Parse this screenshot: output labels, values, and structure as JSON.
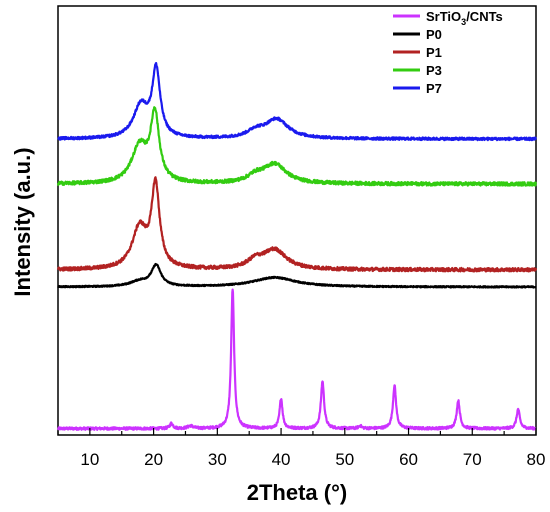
{
  "chart_data": {
    "type": "line",
    "xlabel": "2Theta (°)",
    "ylabel": "Intensity (a.u.)",
    "xlim": [
      5,
      80
    ],
    "xticks": [
      10,
      20,
      30,
      40,
      50,
      60,
      70,
      80
    ],
    "ylim": [
      0,
      10
    ],
    "y_tick_labels_shown": false,
    "grid": false,
    "legend_position": "top-right",
    "colors": {
      "SrTiO3/CNTs": "#cc33ff",
      "P0": "#000000",
      "P1": "#b22222",
      "P3": "#33cc11",
      "P7": "#1a1aee"
    },
    "legend": [
      {
        "key": "SrTiO3/CNTs",
        "label_main": "SrTiO",
        "label_sub": "3",
        "label_tail": "/CNTs"
      },
      {
        "key": "P0",
        "label_main": "P0",
        "label_sub": "",
        "label_tail": ""
      },
      {
        "key": "P1",
        "label_main": "P1",
        "label_sub": "",
        "label_tail": ""
      },
      {
        "key": "P3",
        "label_main": "P3",
        "label_sub": "",
        "label_tail": ""
      },
      {
        "key": "P7",
        "label_main": "P7",
        "label_sub": "",
        "label_tail": ""
      }
    ],
    "series": [
      {
        "key": "SrTiO3/CNTs",
        "baseline": 0.15,
        "noise": 0.03,
        "peaks": [
          {
            "x": 22.8,
            "h": 0.12,
            "w": 0.3
          },
          {
            "x": 25.8,
            "h": 0.06,
            "w": 0.5
          },
          {
            "x": 32.4,
            "h": 3.25,
            "w": 0.28
          },
          {
            "x": 40.0,
            "h": 0.7,
            "w": 0.28
          },
          {
            "x": 46.5,
            "h": 1.1,
            "w": 0.3
          },
          {
            "x": 52.4,
            "h": 0.06,
            "w": 0.3
          },
          {
            "x": 57.8,
            "h": 1.0,
            "w": 0.3
          },
          {
            "x": 67.8,
            "h": 0.65,
            "w": 0.3
          },
          {
            "x": 77.2,
            "h": 0.45,
            "w": 0.3
          }
        ]
      },
      {
        "key": "P0",
        "baseline": 3.45,
        "noise": 0.015,
        "peaks": [
          {
            "x": 17.8,
            "h": 0.12,
            "w": 1.8
          },
          {
            "x": 20.4,
            "h": 0.48,
            "w": 0.9
          },
          {
            "x": 39.0,
            "h": 0.22,
            "w": 4.0
          }
        ]
      },
      {
        "key": "P1",
        "baseline": 3.85,
        "noise": 0.04,
        "peaks": [
          {
            "x": 17.8,
            "h": 0.95,
            "w": 1.4
          },
          {
            "x": 20.3,
            "h": 1.9,
            "w": 0.75
          },
          {
            "x": 36.0,
            "h": 0.18,
            "w": 1.5
          },
          {
            "x": 39.0,
            "h": 0.45,
            "w": 2.2
          }
        ]
      },
      {
        "key": "P3",
        "baseline": 5.85,
        "noise": 0.04,
        "peaks": [
          {
            "x": 17.8,
            "h": 0.85,
            "w": 1.5
          },
          {
            "x": 20.2,
            "h": 1.55,
            "w": 0.8
          },
          {
            "x": 36.0,
            "h": 0.15,
            "w": 1.5
          },
          {
            "x": 39.0,
            "h": 0.45,
            "w": 2.2
          }
        ]
      },
      {
        "key": "P7",
        "baseline": 6.9,
        "noise": 0.03,
        "peaks": [
          {
            "x": 18.0,
            "h": 0.75,
            "w": 1.4
          },
          {
            "x": 20.4,
            "h": 1.55,
            "w": 0.75
          },
          {
            "x": 36.0,
            "h": 0.15,
            "w": 1.5
          },
          {
            "x": 39.3,
            "h": 0.45,
            "w": 2.2
          }
        ]
      }
    ]
  }
}
